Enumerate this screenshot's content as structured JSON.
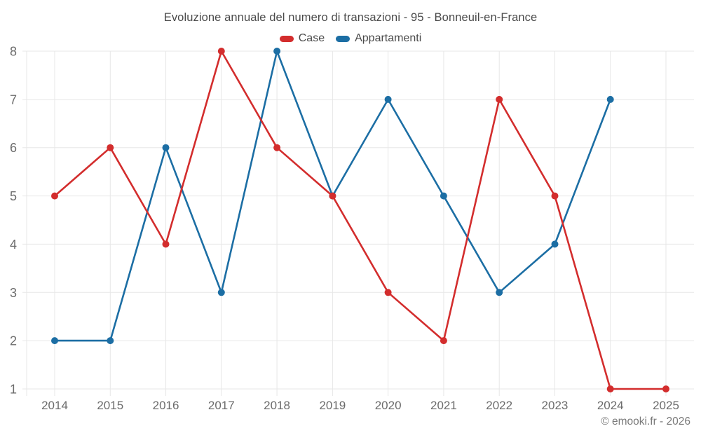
{
  "chart_data": {
    "type": "line",
    "title": "Evoluzione annuale del numero di transazioni - 95 - Bonneuil-en-France",
    "categories": [
      "2014",
      "2015",
      "2016",
      "2017",
      "2018",
      "2019",
      "2020",
      "2021",
      "2022",
      "2023",
      "2024",
      "2025"
    ],
    "series": [
      {
        "name": "Case",
        "color": "#d32d2d",
        "values": [
          5,
          6,
          4,
          8,
          6,
          5,
          3,
          2,
          7,
          5,
          1,
          1
        ]
      },
      {
        "name": "Appartamenti",
        "color": "#1c6ea4",
        "values": [
          2,
          2,
          6,
          3,
          8,
          5,
          7,
          5,
          3,
          4,
          7,
          null
        ]
      }
    ],
    "xlabel": "",
    "ylabel": "",
    "ylim": [
      1,
      8
    ],
    "yticks": [
      1,
      2,
      3,
      4,
      5,
      6,
      7,
      8
    ],
    "grid": true,
    "legend_position": "top"
  },
  "footer": {
    "copyright": "© emooki.fr - 2026"
  },
  "style": {
    "background": "#ffffff",
    "grid_color": "#e7e7e7",
    "tick_label_color": "#6b6b6b",
    "title_color": "#4a4a4a",
    "footer_color": "#7a7a7a",
    "marker_radius": 5
  }
}
